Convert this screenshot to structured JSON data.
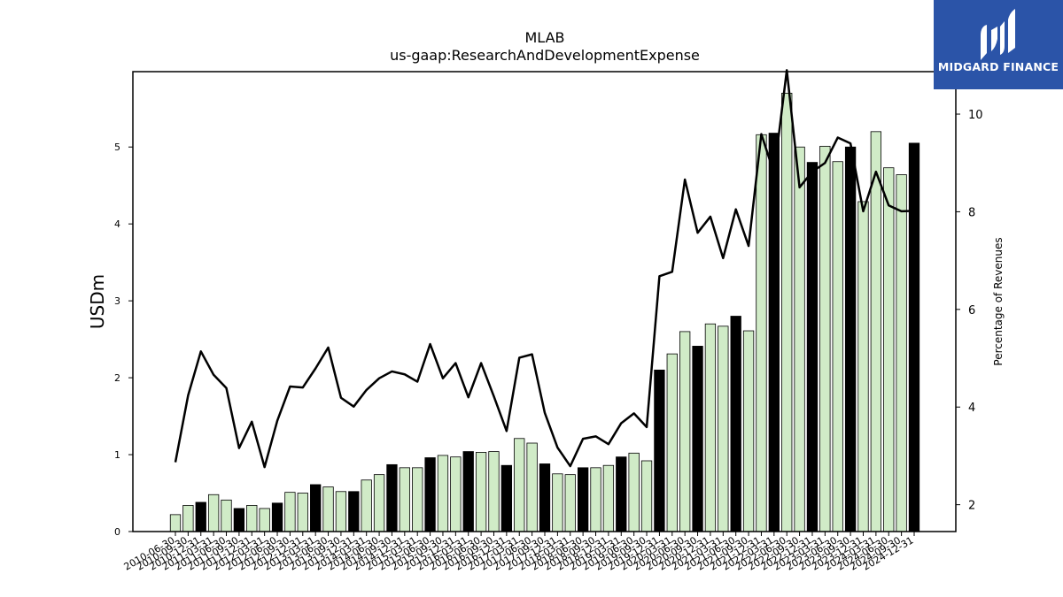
{
  "logo": {
    "text": "MIDGARD FINANCE"
  },
  "chart_data": {
    "type": "bar",
    "title": "MLAB",
    "subtitle": "us-gaap:ResearchAndDevelopmentExpense",
    "ylabel": "USDm",
    "y2label": "Percentage of Revenues",
    "ylim": [
      0,
      5.98
    ],
    "y2lim": [
      1.45,
      10.87
    ],
    "yticks": [
      0,
      1,
      2,
      3,
      4,
      5
    ],
    "y2ticks": [
      2,
      4,
      6,
      8,
      10
    ],
    "colors": {
      "quarter_bar": "#d0ebc7",
      "annual_bar": "#000000",
      "line": "#000000"
    },
    "categories": [
      "2010-06-30",
      "2010-09-30",
      "2010-12-31",
      "2011-03-31",
      "2011-06-30",
      "2011-09-30",
      "2011-12-31",
      "2012-03-31",
      "2012-06-30",
      "2012-09-30",
      "2012-12-31",
      "2013-03-31",
      "2013-06-30",
      "2013-09-30",
      "2013-12-31",
      "2014-03-31",
      "2014-06-30",
      "2014-09-30",
      "2014-12-31",
      "2015-03-31",
      "2015-06-30",
      "2015-09-30",
      "2015-12-31",
      "2016-03-31",
      "2016-06-30",
      "2016-09-30",
      "2016-12-31",
      "2017-03-31",
      "2017-06-30",
      "2017-09-30",
      "2017-12-31",
      "2018-03-31",
      "2018-06-30",
      "2018-09-30",
      "2018-12-31",
      "2019-03-31",
      "2019-06-30",
      "2019-09-30",
      "2019-12-31",
      "2020-03-31",
      "2020-06-30",
      "2020-09-30",
      "2020-12-31",
      "2021-03-31",
      "2021-06-30",
      "2021-09-30",
      "2021-12-31",
      "2022-03-31",
      "2022-06-30",
      "2022-09-30",
      "2022-12-31",
      "2023-03-31",
      "2023-06-30",
      "2023-09-30",
      "2023-12-31",
      "2024-03-31",
      "2024-06-30",
      "2024-09-30",
      "2024-12-31"
    ],
    "annual": [
      false,
      false,
      true,
      false,
      false,
      true,
      false,
      false,
      true,
      false,
      false,
      true,
      false,
      false,
      true,
      false,
      false,
      true,
      false,
      false,
      true,
      false,
      false,
      true,
      false,
      false,
      true,
      false,
      false,
      true,
      false,
      false,
      true,
      false,
      false,
      true,
      false,
      false,
      true,
      false,
      false,
      true,
      false,
      false,
      true,
      false,
      false,
      true,
      false,
      false,
      true,
      false,
      false,
      true,
      false,
      false,
      false,
      false,
      true
    ],
    "series": [
      {
        "name": "USDm",
        "type": "bar",
        "values": [
          0.22,
          0.34,
          0.38,
          0.48,
          0.41,
          0.3,
          0.34,
          0.3,
          0.37,
          0.51,
          0.5,
          0.61,
          0.58,
          0.52,
          0.52,
          0.67,
          0.74,
          0.87,
          0.83,
          0.83,
          0.96,
          0.99,
          0.97,
          1.04,
          1.03,
          1.04,
          0.86,
          1.21,
          1.15,
          0.88,
          0.75,
          0.74,
          0.83,
          0.83,
          0.86,
          0.97,
          1.02,
          0.92,
          2.1,
          2.31,
          2.6,
          2.41,
          2.7,
          2.67,
          2.8,
          2.61,
          5.16,
          5.18,
          5.7,
          5.0,
          4.8,
          5.01,
          4.81,
          5.0,
          4.29,
          5.2,
          4.73,
          4.64,
          5.05
        ]
      },
      {
        "name": "Percentage of Revenues",
        "type": "line",
        "values": [
          2.87,
          4.24,
          5.14,
          4.66,
          4.39,
          3.16,
          3.7,
          2.77,
          3.72,
          4.42,
          4.4,
          4.79,
          5.22,
          4.19,
          4.01,
          4.35,
          4.59,
          4.73,
          4.67,
          4.52,
          5.29,
          4.59,
          4.9,
          4.2,
          4.9,
          4.22,
          3.51,
          5.01,
          5.08,
          3.88,
          3.17,
          2.79,
          3.35,
          3.4,
          3.24,
          3.67,
          3.87,
          3.59,
          6.68,
          6.77,
          8.66,
          7.57,
          7.9,
          7.05,
          8.05,
          7.3,
          9.59,
          8.79,
          10.9,
          8.5,
          8.82,
          9.0,
          9.52,
          9.4,
          8.01,
          8.82,
          8.13,
          8.01,
          8.02
        ]
      }
    ]
  }
}
